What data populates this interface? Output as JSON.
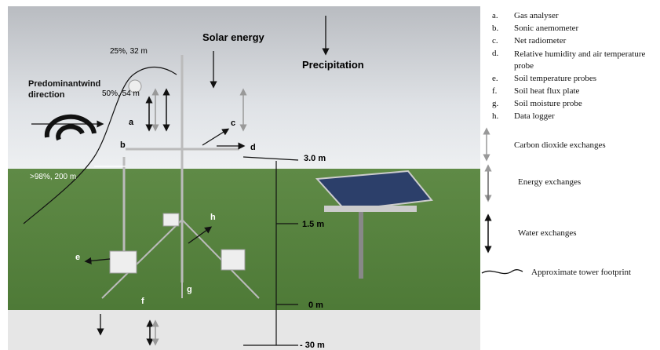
{
  "photo_annotations": {
    "solar_energy": "Solar energy",
    "precipitation": "Precipitation",
    "wind_direction": "Predominantwind direction",
    "footprint_25": "25%, 32 m",
    "footprint_50": "50%, 54 m",
    "footprint_98": ">98%, 200 m",
    "letters": [
      "a",
      "b",
      "c",
      "d",
      "e",
      "f",
      "g",
      "h"
    ],
    "heights": [
      "3.0 m",
      "1.5 m",
      "0 m",
      "- 30 m"
    ]
  },
  "legend": {
    "instruments": [
      {
        "key": "a.",
        "text": "Gas analyser"
      },
      {
        "key": "b.",
        "text": "Sonic anemometer"
      },
      {
        "key": "c.",
        "text": "Net radiometer"
      },
      {
        "key": "d.",
        "text": "Relative humidity and air temperature probe"
      },
      {
        "key": "e.",
        "text": "Soil temperature probes"
      },
      {
        "key": "f.",
        "text": "Soil heat flux plate"
      },
      {
        "key": "g.",
        "text": "Soil moisture probe"
      },
      {
        "key": "h.",
        "text": "Data logger"
      }
    ],
    "arrows": [
      "Carbon dioxide exchanges",
      "Energy exchanges",
      "Water exchanges",
      "Approximate tower footprint"
    ]
  }
}
